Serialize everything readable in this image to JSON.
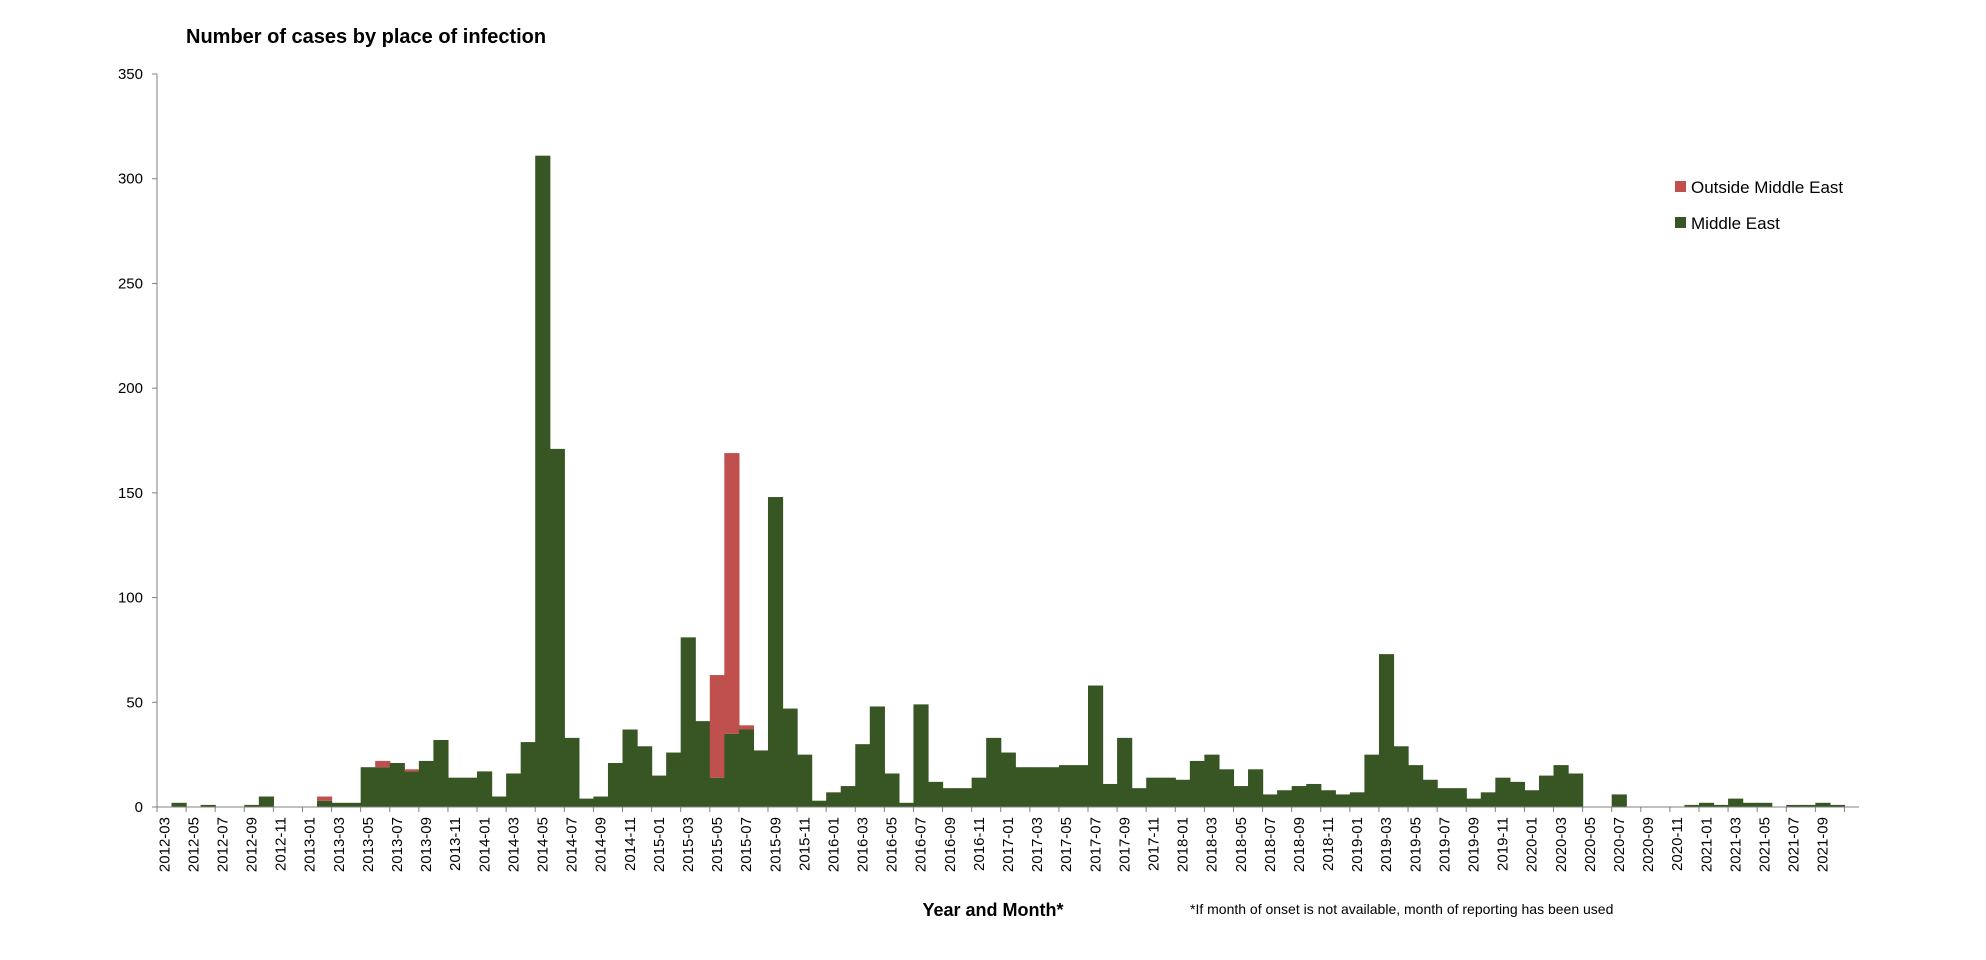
{
  "colors": {
    "middle_east": "#375623",
    "outside_middle_east": "#C0504D",
    "axis": "#808080"
  },
  "chart_data": {
    "type": "bar",
    "stacked": true,
    "title": "Number of cases by place of infection",
    "xlabel": "Year and Month*",
    "footnote": "*If month of onset is not available, month of reporting has been used",
    "ylim": [
      0,
      350
    ],
    "yticks": [
      0,
      50,
      100,
      150,
      200,
      250,
      300,
      350
    ],
    "legend_position": "top-right",
    "start_month": "2012-03",
    "xtick_labels": [
      "2012-03",
      "2012-05",
      "2012-07",
      "2012-09",
      "2012-11",
      "2013-01",
      "2013-03",
      "2013-05",
      "2013-07",
      "2013-09",
      "2013-11",
      "2014-01",
      "2014-03",
      "2014-05",
      "2014-07",
      "2014-09",
      "2014-11",
      "2015-01",
      "2015-03",
      "2015-05",
      "2015-07",
      "2015-09",
      "2015-11",
      "2016-01",
      "2016-03",
      "2016-05",
      "2016-07",
      "2016-09",
      "2016-11",
      "2017-01",
      "2017-03",
      "2017-05",
      "2017-07",
      "2017-09",
      "2017-11",
      "2018-01",
      "2018-03",
      "2018-05",
      "2018-07",
      "2018-09",
      "2018-11",
      "2019-01",
      "2019-03",
      "2019-05",
      "2019-07",
      "2019-09",
      "2019-11",
      "2020-01",
      "2020-03",
      "2020-05",
      "2020-07",
      "2020-09",
      "2020-11",
      "2021-01",
      "2021-03",
      "2021-05",
      "2021-07",
      "2021-09"
    ],
    "series": [
      {
        "name": "Outside Middle East",
        "values": [
          0,
          0,
          0,
          0,
          0,
          0,
          0,
          0,
          0,
          0,
          0,
          2,
          0,
          0,
          0,
          3,
          0,
          1,
          0,
          0,
          0,
          0,
          0,
          0,
          0,
          0,
          0,
          0,
          0,
          0,
          0,
          0,
          0,
          0,
          0,
          0,
          0,
          0,
          49,
          134,
          2,
          0,
          0,
          0,
          0,
          0,
          0,
          0,
          0,
          0,
          0,
          0,
          0,
          0,
          0,
          0,
          0,
          0,
          0,
          0,
          0,
          0,
          0,
          0,
          0,
          0,
          0,
          0,
          0,
          0,
          0,
          0,
          0,
          0,
          0,
          0,
          0,
          0,
          0,
          0,
          0,
          0,
          0,
          0,
          0,
          0,
          0,
          0,
          0,
          0,
          0,
          0,
          0,
          0,
          0,
          0,
          0,
          0,
          0,
          0,
          0,
          0,
          0,
          0,
          0,
          0,
          0,
          0,
          0,
          0,
          0,
          0,
          0,
          0,
          0,
          0
        ]
      },
      {
        "name": "Middle East",
        "values": [
          0,
          2,
          0,
          1,
          0,
          0,
          1,
          5,
          0,
          0,
          0,
          3,
          2,
          2,
          19,
          19,
          21,
          17,
          22,
          32,
          14,
          14,
          17,
          5,
          16,
          31,
          311,
          171,
          33,
          4,
          5,
          21,
          37,
          29,
          15,
          26,
          81,
          41,
          14,
          35,
          37,
          27,
          148,
          47,
          25,
          3,
          7,
          10,
          30,
          48,
          16,
          2,
          49,
          12,
          9,
          9,
          14,
          33,
          26,
          19,
          19,
          19,
          20,
          20,
          58,
          11,
          33,
          9,
          14,
          14,
          13,
          22,
          25,
          18,
          10,
          18,
          6,
          8,
          10,
          11,
          8,
          6,
          7,
          25,
          73,
          29,
          20,
          13,
          9,
          9,
          4,
          7,
          14,
          12,
          8,
          15,
          20,
          16,
          0,
          0,
          6,
          0,
          0,
          0,
          0,
          1,
          2,
          1,
          4,
          2,
          2,
          0,
          1,
          1,
          2,
          1,
          0
        ]
      }
    ]
  }
}
